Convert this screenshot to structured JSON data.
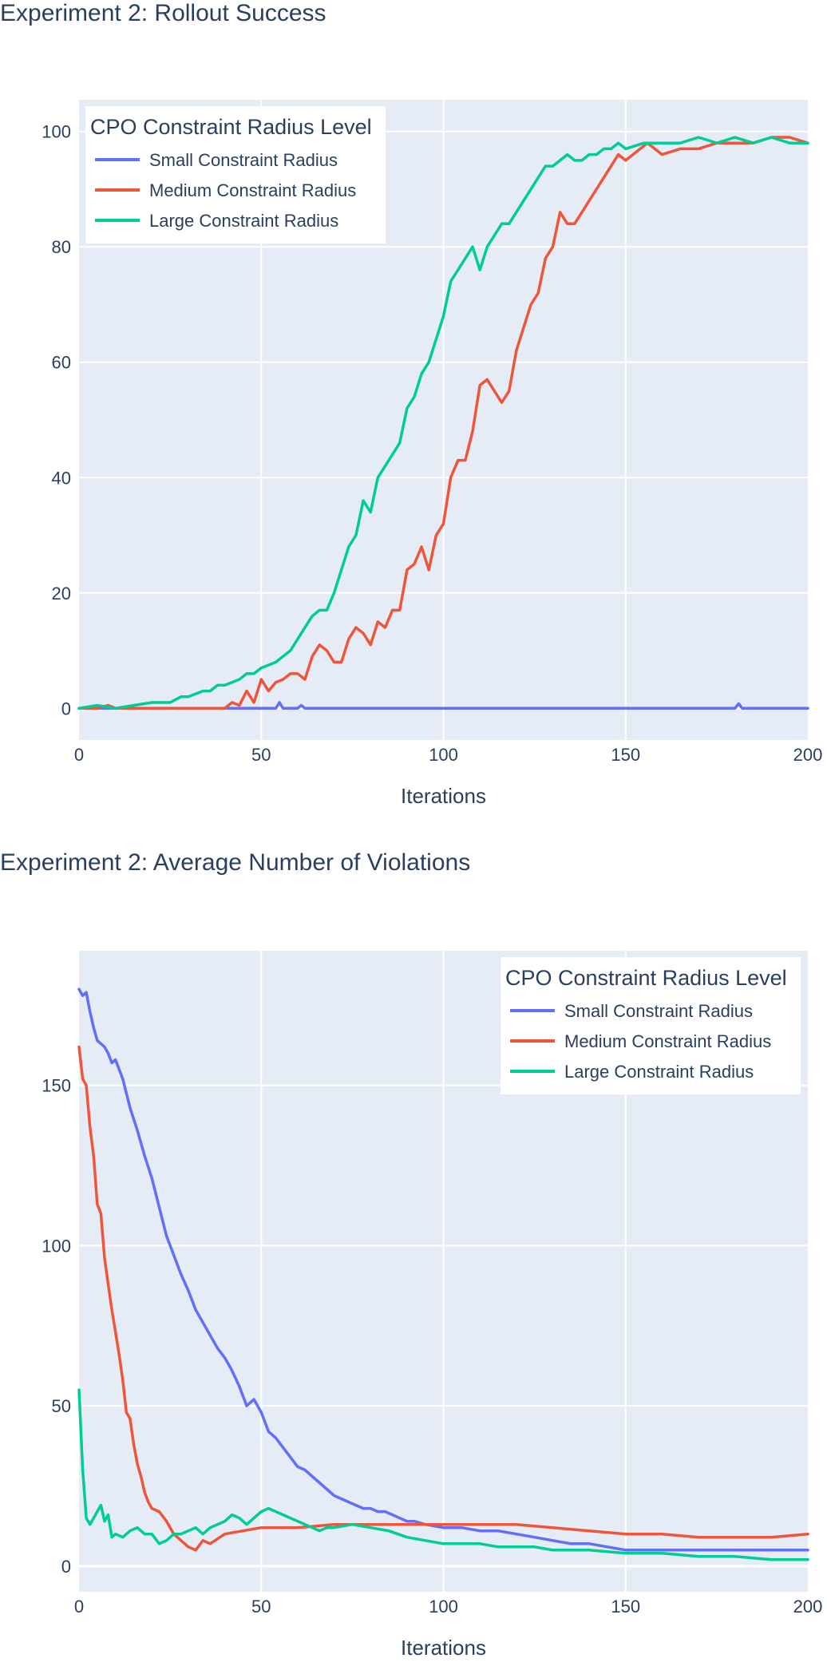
{
  "chart_data": [
    {
      "type": "line",
      "title": "Experiment 2: Rollout Success",
      "xlabel": "Iterations",
      "ylabel": "",
      "xlim": [
        0,
        200
      ],
      "ylim": [
        -5.5,
        105.5
      ],
      "xticks": [
        0,
        50,
        100,
        150,
        200
      ],
      "yticks": [
        0,
        20,
        40,
        60,
        80,
        100
      ],
      "grid": true,
      "legend_title": "CPO Constraint Radius Level",
      "legend_position": "top-left",
      "series": [
        {
          "name": "Small Constraint Radius",
          "color": "#636efa",
          "x": [
            0,
            10,
            20,
            30,
            40,
            50,
            54,
            55,
            56,
            60,
            61,
            62,
            70,
            80,
            90,
            100,
            110,
            120,
            130,
            140,
            150,
            160,
            170,
            180,
            181,
            182,
            190,
            200
          ],
          "values": [
            0,
            0,
            0,
            0,
            0,
            0,
            0,
            1,
            0,
            0,
            0.5,
            0,
            0,
            0,
            0,
            0,
            0,
            0,
            0,
            0,
            0,
            0,
            0,
            0,
            0.8,
            0,
            0,
            0
          ]
        },
        {
          "name": "Medium Constraint Radius",
          "color": "#ef553b",
          "x": [
            0,
            5,
            8,
            10,
            15,
            20,
            25,
            30,
            35,
            40,
            42,
            44,
            46,
            48,
            50,
            52,
            54,
            56,
            58,
            60,
            62,
            64,
            66,
            68,
            70,
            72,
            74,
            76,
            78,
            80,
            82,
            84,
            86,
            88,
            90,
            92,
            94,
            96,
            98,
            100,
            102,
            104,
            106,
            108,
            110,
            112,
            114,
            116,
            118,
            120,
            122,
            124,
            126,
            128,
            130,
            132,
            134,
            136,
            138,
            140,
            142,
            144,
            146,
            148,
            150,
            152,
            154,
            156,
            158,
            160,
            165,
            170,
            175,
            180,
            185,
            190,
            195,
            200
          ],
          "values": [
            0,
            0,
            0.5,
            0,
            0,
            0,
            0,
            0,
            0,
            0,
            1,
            0.5,
            3,
            1,
            5,
            3,
            4.5,
            5,
            6,
            6,
            5,
            9,
            11,
            10,
            8,
            8,
            12,
            14,
            13,
            11,
            15,
            14,
            17,
            17,
            24,
            25,
            28,
            24,
            30,
            32,
            40,
            43,
            43,
            48,
            56,
            57,
            55,
            53,
            55,
            62,
            66,
            70,
            72,
            78,
            80,
            86,
            84,
            84,
            86,
            88,
            90,
            92,
            94,
            96,
            95,
            96,
            97,
            98,
            97,
            96,
            97,
            97,
            98,
            98,
            98,
            99,
            99,
            98
          ]
        },
        {
          "name": "Large Constraint Radius",
          "color": "#00cc96",
          "x": [
            0,
            5,
            10,
            15,
            20,
            25,
            28,
            30,
            32,
            34,
            36,
            38,
            40,
            42,
            44,
            46,
            48,
            50,
            52,
            54,
            56,
            58,
            60,
            62,
            64,
            66,
            68,
            70,
            72,
            74,
            76,
            78,
            80,
            82,
            84,
            86,
            88,
            90,
            92,
            94,
            96,
            98,
            100,
            102,
            104,
            106,
            108,
            110,
            112,
            114,
            116,
            118,
            120,
            122,
            124,
            126,
            128,
            130,
            132,
            134,
            136,
            138,
            140,
            142,
            144,
            146,
            148,
            150,
            155,
            160,
            165,
            170,
            175,
            180,
            185,
            190,
            195,
            200
          ],
          "values": [
            0,
            0.5,
            0,
            0.5,
            1,
            1,
            2,
            2,
            2.5,
            3,
            3,
            4,
            4,
            4.5,
            5,
            6,
            6,
            7,
            7.5,
            8,
            9,
            10,
            12,
            14,
            16,
            17,
            17,
            20,
            24,
            28,
            30,
            36,
            34,
            40,
            42,
            44,
            46,
            52,
            54,
            58,
            60,
            64,
            68,
            74,
            76,
            78,
            80,
            76,
            80,
            82,
            84,
            84,
            86,
            88,
            90,
            92,
            94,
            94,
            95,
            96,
            95,
            95,
            96,
            96,
            97,
            97,
            98,
            97,
            98,
            98,
            98,
            99,
            98,
            99,
            98,
            99,
            98,
            98
          ]
        }
      ]
    },
    {
      "type": "line",
      "title": "Experiment 2: Average Number of Violations",
      "xlabel": "Iterations",
      "ylabel": "",
      "xlim": [
        0,
        200
      ],
      "ylim": [
        -8,
        192
      ],
      "xticks": [
        0,
        50,
        100,
        150,
        200
      ],
      "yticks": [
        0,
        50,
        100,
        150
      ],
      "grid": true,
      "legend_title": "CPO Constraint Radius Level",
      "legend_position": "top-right",
      "series": [
        {
          "name": "Small Constraint Radius",
          "color": "#636efa",
          "x": [
            0,
            1,
            2,
            3,
            4,
            5,
            6,
            7,
            8,
            9,
            10,
            12,
            14,
            16,
            18,
            20,
            22,
            24,
            26,
            28,
            30,
            32,
            34,
            36,
            38,
            40,
            42,
            44,
            46,
            48,
            50,
            52,
            54,
            56,
            58,
            60,
            62,
            64,
            66,
            68,
            70,
            72,
            74,
            76,
            78,
            80,
            82,
            84,
            86,
            88,
            90,
            92,
            95,
            100,
            105,
            110,
            115,
            120,
            125,
            130,
            135,
            140,
            145,
            150,
            155,
            160,
            165,
            170,
            175,
            180,
            185,
            190,
            195,
            200
          ],
          "values": [
            180,
            178,
            179,
            173,
            168,
            164,
            163,
            162,
            160,
            157,
            158,
            152,
            143,
            136,
            128,
            121,
            112,
            103,
            97,
            91,
            86,
            80,
            76,
            72,
            68,
            65,
            61,
            56,
            50,
            52,
            48,
            42,
            40,
            37,
            34,
            31,
            30,
            28,
            26,
            24,
            22,
            21,
            20,
            19,
            18,
            18,
            17,
            17,
            16,
            15,
            14,
            14,
            13,
            12,
            12,
            11,
            11,
            10,
            9,
            8,
            7,
            7,
            6,
            5,
            5,
            5,
            5,
            5,
            5,
            5,
            5,
            5,
            5,
            5
          ]
        },
        {
          "name": "Medium Constraint Radius",
          "color": "#ef553b",
          "x": [
            0,
            1,
            2,
            3,
            4,
            5,
            6,
            7,
            8,
            9,
            10,
            11,
            12,
            13,
            14,
            15,
            16,
            17,
            18,
            19,
            20,
            22,
            24,
            26,
            28,
            30,
            32,
            34,
            36,
            40,
            45,
            50,
            60,
            70,
            80,
            90,
            100,
            110,
            120,
            130,
            140,
            150,
            160,
            170,
            180,
            190,
            200
          ],
          "values": [
            162,
            152,
            150,
            137,
            128,
            113,
            110,
            96,
            88,
            80,
            73,
            66,
            58,
            48,
            46,
            38,
            32,
            28,
            23,
            20,
            18,
            17,
            14,
            10,
            8,
            6,
            5,
            8,
            7,
            10,
            11,
            12,
            12,
            13,
            13,
            13,
            13,
            13,
            13,
            12,
            11,
            10,
            10,
            9,
            9,
            9,
            10
          ]
        },
        {
          "name": "Large Constraint Radius",
          "color": "#00cc96",
          "x": [
            0,
            1,
            2,
            3,
            4,
            5,
            6,
            7,
            8,
            9,
            10,
            12,
            14,
            16,
            18,
            20,
            22,
            24,
            26,
            28,
            30,
            32,
            34,
            36,
            38,
            40,
            42,
            44,
            46,
            48,
            50,
            52,
            54,
            56,
            58,
            60,
            62,
            64,
            66,
            68,
            70,
            75,
            80,
            85,
            90,
            95,
            100,
            105,
            110,
            115,
            120,
            125,
            130,
            140,
            150,
            160,
            170,
            180,
            190,
            200
          ],
          "values": [
            55,
            30,
            15,
            13,
            15,
            17,
            19,
            14,
            16,
            9,
            10,
            9,
            11,
            12,
            10,
            10,
            7,
            8,
            10,
            10,
            11,
            12,
            10,
            12,
            13,
            14,
            16,
            15,
            13,
            15,
            17,
            18,
            17,
            16,
            15,
            14,
            13,
            12,
            11,
            12,
            12,
            13,
            12,
            11,
            9,
            8,
            7,
            7,
            7,
            6,
            6,
            6,
            5,
            5,
            4,
            4,
            3,
            3,
            2,
            2
          ]
        }
      ]
    }
  ]
}
